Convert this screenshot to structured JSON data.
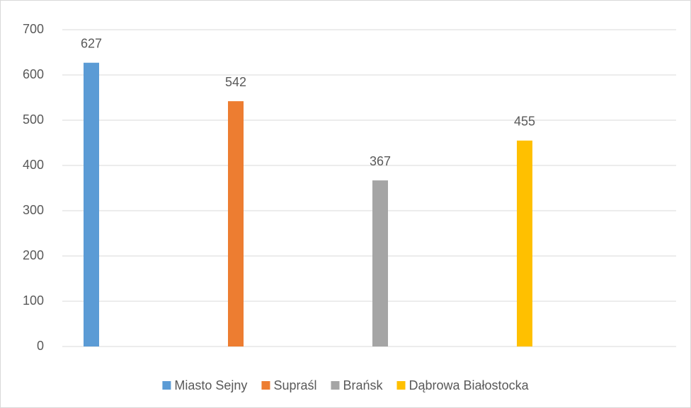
{
  "chart_data": {
    "type": "bar",
    "categories": [
      null
    ],
    "series": [
      {
        "name": "Miasto Sejny",
        "color": "#5b9bd5",
        "values": [
          627
        ]
      },
      {
        "name": "Supraśl",
        "color": "#ed7d31",
        "values": [
          542
        ]
      },
      {
        "name": "Brańsk",
        "color": "#a5a5a5",
        "values": [
          367
        ]
      },
      {
        "name": "Dąbrowa Białostocka",
        "color": "#ffc000",
        "values": [
          455
        ]
      }
    ],
    "ylim": [
      0,
      700
    ],
    "yticks": [
      0,
      100,
      200,
      300,
      400,
      500,
      600,
      700
    ],
    "grid": true,
    "legend": "bottom",
    "data_labels": true
  }
}
